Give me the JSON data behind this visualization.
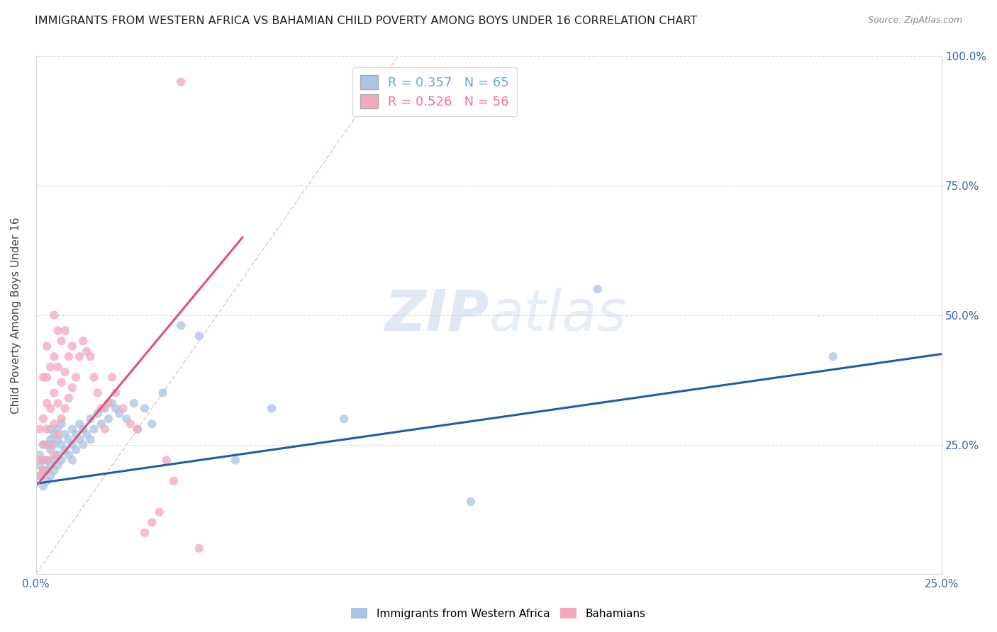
{
  "title": "IMMIGRANTS FROM WESTERN AFRICA VS BAHAMIAN CHILD POVERTY AMONG BOYS UNDER 16 CORRELATION CHART",
  "source": "Source: ZipAtlas.com",
  "ylabel": "Child Poverty Among Boys Under 16",
  "xlim": [
    0,
    0.25
  ],
  "ylim": [
    0,
    1.0
  ],
  "legend_entry1": "R = 0.357   N = 65",
  "legend_entry2": "R = 0.526   N = 56",
  "series1_label": "Immigrants from Western Africa",
  "series2_label": "Bahamians",
  "series1_color": "#aac4e4",
  "series2_color": "#f4a8bc",
  "series1_line_color": "#1a5ea8",
  "series2_line_color": "#e0507a",
  "series2_dashed_color": "#f0b8c8",
  "legend1_text_color": "#6aaad4",
  "legend2_text_color": "#f47090",
  "watermark_color": "#c8d8ea",
  "grid_color": "#d8d8d8",
  "background_color": "#ffffff",
  "title_color": "#222222",
  "source_color": "#888888",
  "axis_label_color": "#3366aa",
  "series1_x": [
    0.001,
    0.001,
    0.001,
    0.002,
    0.002,
    0.002,
    0.002,
    0.003,
    0.003,
    0.003,
    0.003,
    0.004,
    0.004,
    0.004,
    0.004,
    0.004,
    0.005,
    0.005,
    0.005,
    0.005,
    0.006,
    0.006,
    0.006,
    0.006,
    0.007,
    0.007,
    0.007,
    0.008,
    0.008,
    0.009,
    0.009,
    0.01,
    0.01,
    0.01,
    0.011,
    0.011,
    0.012,
    0.012,
    0.013,
    0.013,
    0.014,
    0.015,
    0.015,
    0.016,
    0.017,
    0.018,
    0.019,
    0.02,
    0.021,
    0.022,
    0.023,
    0.025,
    0.027,
    0.028,
    0.03,
    0.032,
    0.035,
    0.04,
    0.045,
    0.055,
    0.065,
    0.085,
    0.12,
    0.155,
    0.22
  ],
  "series1_y": [
    0.19,
    0.21,
    0.23,
    0.17,
    0.2,
    0.22,
    0.25,
    0.18,
    0.2,
    0.22,
    0.25,
    0.19,
    0.21,
    0.24,
    0.26,
    0.28,
    0.2,
    0.22,
    0.25,
    0.27,
    0.21,
    0.23,
    0.26,
    0.28,
    0.22,
    0.25,
    0.29,
    0.24,
    0.27,
    0.23,
    0.26,
    0.22,
    0.25,
    0.28,
    0.24,
    0.27,
    0.26,
    0.29,
    0.25,
    0.28,
    0.27,
    0.26,
    0.3,
    0.28,
    0.31,
    0.29,
    0.32,
    0.3,
    0.33,
    0.32,
    0.31,
    0.3,
    0.33,
    0.28,
    0.32,
    0.29,
    0.35,
    0.48,
    0.46,
    0.22,
    0.32,
    0.3,
    0.14,
    0.55,
    0.42
  ],
  "series2_x": [
    0.001,
    0.001,
    0.001,
    0.002,
    0.002,
    0.002,
    0.002,
    0.003,
    0.003,
    0.003,
    0.003,
    0.003,
    0.004,
    0.004,
    0.004,
    0.005,
    0.005,
    0.005,
    0.005,
    0.005,
    0.006,
    0.006,
    0.006,
    0.006,
    0.007,
    0.007,
    0.007,
    0.008,
    0.008,
    0.008,
    0.009,
    0.009,
    0.01,
    0.01,
    0.011,
    0.012,
    0.013,
    0.014,
    0.015,
    0.016,
    0.017,
    0.018,
    0.019,
    0.02,
    0.021,
    0.022,
    0.024,
    0.026,
    0.028,
    0.03,
    0.032,
    0.034,
    0.036,
    0.038,
    0.04,
    0.045
  ],
  "series2_y": [
    0.19,
    0.22,
    0.28,
    0.2,
    0.25,
    0.3,
    0.38,
    0.22,
    0.28,
    0.33,
    0.38,
    0.44,
    0.25,
    0.32,
    0.4,
    0.23,
    0.29,
    0.35,
    0.42,
    0.5,
    0.27,
    0.33,
    0.4,
    0.47,
    0.3,
    0.37,
    0.45,
    0.32,
    0.39,
    0.47,
    0.34,
    0.42,
    0.36,
    0.44,
    0.38,
    0.42,
    0.45,
    0.43,
    0.42,
    0.38,
    0.35,
    0.32,
    0.28,
    0.33,
    0.38,
    0.35,
    0.32,
    0.29,
    0.28,
    0.08,
    0.1,
    0.12,
    0.22,
    0.18,
    0.95,
    0.05
  ],
  "blue_line_x": [
    0.0,
    0.25
  ],
  "blue_line_y": [
    0.175,
    0.425
  ],
  "pink_line_x": [
    0.0,
    0.057
  ],
  "pink_line_y": [
    0.17,
    0.65
  ],
  "dashed_line_x": [
    0.0,
    0.1
  ],
  "dashed_line_y": [
    0.0,
    1.0
  ]
}
